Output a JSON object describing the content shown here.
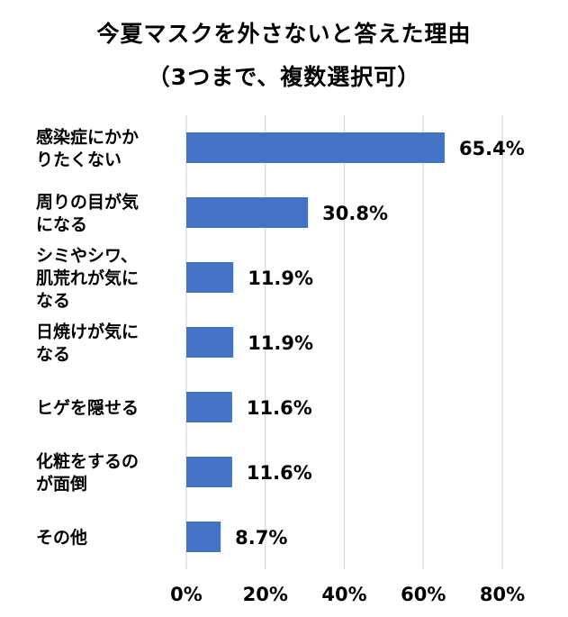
{
  "chart_data": {
    "type": "bar",
    "orientation": "horizontal",
    "title": "今夏マスクを外さないと答えた理由",
    "subtitle": "（3つまで、複数選択可）",
    "categories": [
      [
        "感染症にかか",
        "りたくない"
      ],
      [
        "周りの目が気",
        "になる"
      ],
      [
        "シミやシワ、",
        "肌荒れが気に",
        "なる"
      ],
      [
        "日焼けが気に",
        "なる"
      ],
      [
        "ヒゲを隠せる"
      ],
      [
        "化粧をするの",
        "が面倒"
      ],
      [
        "その他"
      ]
    ],
    "values": [
      65.4,
      30.8,
      11.9,
      11.9,
      11.6,
      11.6,
      8.7
    ],
    "value_labels": [
      "65.4%",
      "30.8%",
      "11.9%",
      "11.9%",
      "11.6%",
      "11.6%",
      "8.7%"
    ],
    "xlim": [
      0,
      80
    ],
    "x_ticks": [
      0,
      20,
      40,
      60,
      80
    ],
    "x_tick_labels": [
      "0%",
      "20%",
      "40%",
      "60%",
      "80%"
    ],
    "grid": true,
    "bar_color": "#4472C4",
    "grid_color": "#D9D9D9"
  }
}
